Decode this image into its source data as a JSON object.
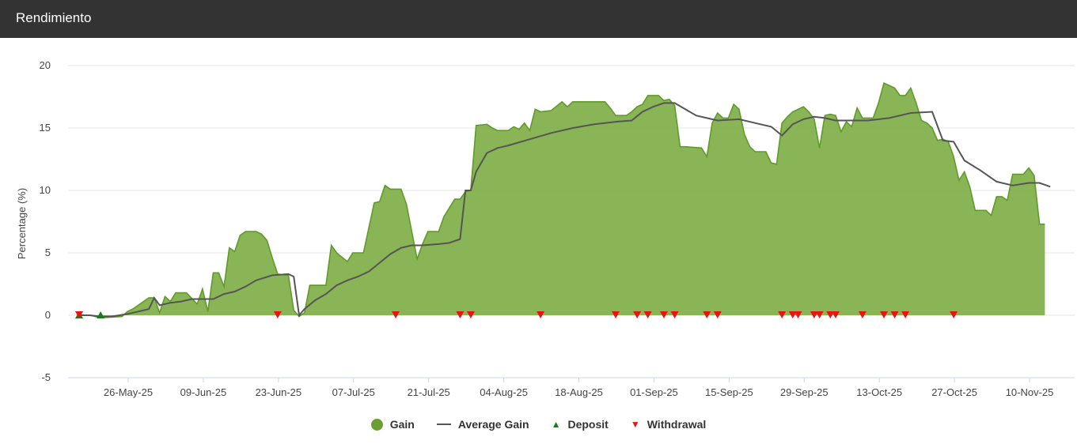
{
  "header": {
    "title": "Rendimiento"
  },
  "colors": {
    "header_bg": "#333333",
    "gain_fill": "#7aab3f",
    "gain_line": "#5f9a2a",
    "avg_line": "#555555",
    "deposit": "#1a7a1a",
    "withdrawal": "#ee1111"
  },
  "legend": [
    {
      "label": "Gain",
      "symbol": "dot",
      "color": "#6b9f2f"
    },
    {
      "label": "Average Gain",
      "symbol": "line",
      "color": "#555555"
    },
    {
      "label": "Deposit",
      "symbol": "triangle-up",
      "color": "#1a7a1a"
    },
    {
      "label": "Withdrawal",
      "symbol": "triangle-down",
      "color": "#ee1111"
    }
  ],
  "chart_data": {
    "type": "area",
    "ylabel": "Percentage (%)",
    "xlabel": "",
    "ylim": [
      -5,
      20
    ],
    "yticks": [
      -5,
      0,
      5,
      10,
      15,
      20
    ],
    "xlim": [
      "2025-05-26",
      "2025-11-20"
    ],
    "x_tick_labels": [
      "26-May-25",
      "09-Jun-25",
      "23-Jun-25",
      "07-Jul-25",
      "21-Jul-25",
      "04-Aug-25",
      "18-Aug-25",
      "01-Sep-25",
      "15-Sep-25",
      "29-Sep-25",
      "13-Oct-25",
      "27-Oct-25",
      "10-Nov-25"
    ],
    "grid": true,
    "legend_position": "bottom",
    "series": [
      {
        "name": "Gain",
        "type": "area",
        "points": [
          [
            "2025-05-26",
            0.0
          ],
          [
            "2025-05-28",
            0.0
          ],
          [
            "2025-05-30",
            -0.2
          ],
          [
            "2025-06-03",
            -0.1
          ],
          [
            "2025-06-04",
            0.3
          ],
          [
            "2025-06-05",
            0.5
          ],
          [
            "2025-06-08",
            1.4
          ],
          [
            "2025-06-09",
            1.4
          ],
          [
            "2025-06-10",
            0.2
          ],
          [
            "2025-06-11",
            1.5
          ],
          [
            "2025-06-12",
            1.1
          ],
          [
            "2025-06-13",
            1.8
          ],
          [
            "2025-06-15",
            1.8
          ],
          [
            "2025-06-17",
            0.9
          ],
          [
            "2025-06-18",
            2.1
          ],
          [
            "2025-06-19",
            0.3
          ],
          [
            "2025-06-20",
            3.4
          ],
          [
            "2025-06-21",
            3.4
          ],
          [
            "2025-06-22",
            2.3
          ],
          [
            "2025-06-23",
            5.4
          ],
          [
            "2025-06-24",
            5.1
          ],
          [
            "2025-06-25",
            6.4
          ],
          [
            "2025-06-26",
            6.7
          ],
          [
            "2025-06-28",
            6.7
          ],
          [
            "2025-06-29",
            6.5
          ],
          [
            "2025-06-30",
            6.0
          ],
          [
            "2025-07-01",
            4.6
          ],
          [
            "2025-07-02",
            3.3
          ],
          [
            "2025-07-04",
            3.2
          ],
          [
            "2025-07-05",
            0.4
          ],
          [
            "2025-07-06",
            -0.1
          ],
          [
            "2025-07-07",
            0.2
          ],
          [
            "2025-07-08",
            2.4
          ],
          [
            "2025-07-11",
            2.4
          ],
          [
            "2025-07-12",
            5.6
          ],
          [
            "2025-07-13",
            5.0
          ],
          [
            "2025-07-15",
            4.3
          ],
          [
            "2025-07-16",
            5.0
          ],
          [
            "2025-07-18",
            5.0
          ],
          [
            "2025-07-20",
            9.0
          ],
          [
            "2025-07-21",
            9.1
          ],
          [
            "2025-07-22",
            10.4
          ],
          [
            "2025-07-23",
            10.1
          ],
          [
            "2025-07-25",
            10.1
          ],
          [
            "2025-07-26",
            8.9
          ],
          [
            "2025-07-28",
            4.5
          ],
          [
            "2025-07-29",
            5.7
          ],
          [
            "2025-07-30",
            6.7
          ],
          [
            "2025-08-01",
            6.7
          ],
          [
            "2025-08-02",
            7.9
          ],
          [
            "2025-08-04",
            9.3
          ],
          [
            "2025-08-05",
            9.3
          ],
          [
            "2025-08-06",
            9.9
          ],
          [
            "2025-08-07",
            10.0
          ],
          [
            "2025-08-08",
            15.2
          ],
          [
            "2025-08-10",
            15.3
          ],
          [
            "2025-08-11",
            15.0
          ],
          [
            "2025-08-12",
            14.8
          ],
          [
            "2025-08-14",
            14.8
          ],
          [
            "2025-08-15",
            15.1
          ],
          [
            "2025-08-16",
            14.9
          ],
          [
            "2025-08-17",
            15.4
          ],
          [
            "2025-08-18",
            14.8
          ],
          [
            "2025-08-19",
            16.5
          ],
          [
            "2025-08-20",
            16.3
          ],
          [
            "2025-08-22",
            16.4
          ],
          [
            "2025-08-24",
            17.1
          ],
          [
            "2025-08-25",
            16.7
          ],
          [
            "2025-08-26",
            17.1
          ],
          [
            "2025-08-28",
            17.1
          ],
          [
            "2025-09-01",
            17.1
          ],
          [
            "2025-09-02",
            16.6
          ],
          [
            "2025-09-03",
            16.0
          ],
          [
            "2025-09-05",
            16.0
          ],
          [
            "2025-09-06",
            16.3
          ],
          [
            "2025-09-07",
            16.7
          ],
          [
            "2025-09-08",
            16.9
          ],
          [
            "2025-09-09",
            17.6
          ],
          [
            "2025-09-10",
            17.6
          ],
          [
            "2025-09-11",
            17.6
          ],
          [
            "2025-09-12",
            17.2
          ],
          [
            "2025-09-13",
            17.3
          ],
          [
            "2025-09-14",
            16.8
          ],
          [
            "2025-09-15",
            13.5
          ],
          [
            "2025-09-16",
            13.5
          ],
          [
            "2025-09-19",
            13.4
          ],
          [
            "2025-09-20",
            12.7
          ],
          [
            "2025-09-21",
            15.4
          ],
          [
            "2025-09-22",
            16.2
          ],
          [
            "2025-09-23",
            15.8
          ],
          [
            "2025-09-24",
            15.8
          ],
          [
            "2025-09-25",
            16.9
          ],
          [
            "2025-09-26",
            16.5
          ],
          [
            "2025-09-27",
            14.5
          ],
          [
            "2025-09-28",
            13.5
          ],
          [
            "2025-09-29",
            13.1
          ],
          [
            "2025-10-01",
            13.1
          ],
          [
            "2025-10-02",
            12.2
          ],
          [
            "2025-10-03",
            12.1
          ],
          [
            "2025-10-04",
            15.4
          ],
          [
            "2025-10-05",
            15.9
          ],
          [
            "2025-10-06",
            16.3
          ],
          [
            "2025-10-08",
            16.7
          ],
          [
            "2025-10-09",
            16.3
          ],
          [
            "2025-10-10",
            15.7
          ],
          [
            "2025-10-11",
            13.4
          ],
          [
            "2025-10-12",
            16.0
          ],
          [
            "2025-10-13",
            16.1
          ],
          [
            "2025-10-14",
            16.0
          ],
          [
            "2025-10-15",
            14.7
          ],
          [
            "2025-10-16",
            15.5
          ],
          [
            "2025-10-17",
            15.1
          ],
          [
            "2025-10-18",
            16.6
          ],
          [
            "2025-10-19",
            15.8
          ],
          [
            "2025-10-21",
            15.8
          ],
          [
            "2025-10-22",
            17.0
          ],
          [
            "2025-10-23",
            18.6
          ],
          [
            "2025-10-25",
            18.2
          ],
          [
            "2025-10-26",
            17.6
          ],
          [
            "2025-10-27",
            17.6
          ],
          [
            "2025-10-28",
            18.2
          ],
          [
            "2025-10-29",
            17.0
          ],
          [
            "2025-10-30",
            15.6
          ],
          [
            "2025-10-31",
            15.4
          ],
          [
            "2025-11-01",
            15.0
          ],
          [
            "2025-11-02",
            14.0
          ],
          [
            "2025-11-03",
            14.1
          ],
          [
            "2025-11-04",
            13.9
          ],
          [
            "2025-11-05",
            12.7
          ],
          [
            "2025-11-06",
            10.8
          ],
          [
            "2025-11-07",
            11.5
          ],
          [
            "2025-11-08",
            10.3
          ],
          [
            "2025-11-09",
            8.4
          ],
          [
            "2025-11-11",
            8.4
          ],
          [
            "2025-11-12",
            8.0
          ],
          [
            "2025-11-13",
            9.5
          ],
          [
            "2025-11-14",
            9.5
          ],
          [
            "2025-11-15",
            9.2
          ],
          [
            "2025-11-16",
            11.3
          ],
          [
            "2025-11-18",
            11.3
          ],
          [
            "2025-11-19",
            11.8
          ],
          [
            "2025-11-20",
            11.2
          ],
          [
            "2025-11-21",
            7.3
          ],
          [
            "2025-11-22",
            7.3
          ]
        ]
      },
      {
        "name": "Average Gain",
        "type": "line",
        "points": [
          [
            "2025-05-26",
            0.0
          ],
          [
            "2025-05-28",
            0.0
          ],
          [
            "2025-05-30",
            -0.1
          ],
          [
            "2025-06-01",
            -0.1
          ],
          [
            "2025-06-04",
            0.1
          ],
          [
            "2025-06-06",
            0.3
          ],
          [
            "2025-06-08",
            0.5
          ],
          [
            "2025-06-09",
            1.4
          ],
          [
            "2025-06-10",
            0.8
          ],
          [
            "2025-06-12",
            1.0
          ],
          [
            "2025-06-14",
            1.1
          ],
          [
            "2025-06-16",
            1.3
          ],
          [
            "2025-06-18",
            1.3
          ],
          [
            "2025-06-20",
            1.3
          ],
          [
            "2025-06-22",
            1.7
          ],
          [
            "2025-06-24",
            1.9
          ],
          [
            "2025-06-26",
            2.3
          ],
          [
            "2025-06-28",
            2.8
          ],
          [
            "2025-07-01",
            3.2
          ],
          [
            "2025-07-04",
            3.3
          ],
          [
            "2025-07-05",
            3.1
          ],
          [
            "2025-07-06",
            0.0
          ],
          [
            "2025-07-07",
            0.5
          ],
          [
            "2025-07-09",
            1.2
          ],
          [
            "2025-07-11",
            1.7
          ],
          [
            "2025-07-13",
            2.4
          ],
          [
            "2025-07-15",
            2.8
          ],
          [
            "2025-07-17",
            3.1
          ],
          [
            "2025-07-19",
            3.5
          ],
          [
            "2025-07-21",
            4.2
          ],
          [
            "2025-07-23",
            4.9
          ],
          [
            "2025-07-25",
            5.4
          ],
          [
            "2025-07-27",
            5.6
          ],
          [
            "2025-07-29",
            5.6
          ],
          [
            "2025-08-01",
            5.7
          ],
          [
            "2025-08-03",
            5.8
          ],
          [
            "2025-08-05",
            6.1
          ],
          [
            "2025-08-06",
            10.0
          ],
          [
            "2025-08-07",
            10.0
          ],
          [
            "2025-08-08",
            11.5
          ],
          [
            "2025-08-10",
            13.0
          ],
          [
            "2025-08-12",
            13.4
          ],
          [
            "2025-08-14",
            13.6
          ],
          [
            "2025-08-18",
            14.1
          ],
          [
            "2025-08-22",
            14.6
          ],
          [
            "2025-08-26",
            15.0
          ],
          [
            "2025-08-30",
            15.3
          ],
          [
            "2025-09-03",
            15.5
          ],
          [
            "2025-09-06",
            15.6
          ],
          [
            "2025-09-08",
            16.3
          ],
          [
            "2025-09-10",
            16.7
          ],
          [
            "2025-09-12",
            17.0
          ],
          [
            "2025-09-14",
            17.0
          ],
          [
            "2025-09-16",
            16.5
          ],
          [
            "2025-09-18",
            16.0
          ],
          [
            "2025-09-20",
            15.8
          ],
          [
            "2025-09-22",
            15.6
          ],
          [
            "2025-09-26",
            15.7
          ],
          [
            "2025-09-30",
            15.3
          ],
          [
            "2025-10-02",
            15.1
          ],
          [
            "2025-10-04",
            14.4
          ],
          [
            "2025-10-06",
            15.3
          ],
          [
            "2025-10-08",
            15.7
          ],
          [
            "2025-10-10",
            15.9
          ],
          [
            "2025-10-12",
            15.8
          ],
          [
            "2025-10-14",
            15.6
          ],
          [
            "2025-10-16",
            15.6
          ],
          [
            "2025-10-20",
            15.6
          ],
          [
            "2025-10-24",
            15.8
          ],
          [
            "2025-10-28",
            16.2
          ],
          [
            "2025-11-01",
            16.3
          ],
          [
            "2025-11-03",
            14.0
          ],
          [
            "2025-11-05",
            13.9
          ],
          [
            "2025-11-07",
            12.4
          ],
          [
            "2025-11-10",
            11.6
          ],
          [
            "2025-11-13",
            10.7
          ],
          [
            "2025-11-16",
            10.4
          ],
          [
            "2025-11-19",
            10.6
          ],
          [
            "2025-11-21",
            10.6
          ],
          [
            "2025-11-23",
            10.3
          ]
        ]
      }
    ],
    "deposits": [
      "2025-05-26",
      "2025-05-30"
    ],
    "withdrawals": [
      "2025-05-26",
      "2025-07-02",
      "2025-07-24",
      "2025-08-05",
      "2025-08-07",
      "2025-08-20",
      "2025-09-03",
      "2025-09-07",
      "2025-09-09",
      "2025-09-12",
      "2025-09-14",
      "2025-09-20",
      "2025-09-22",
      "2025-10-04",
      "2025-10-06",
      "2025-10-07",
      "2025-10-10",
      "2025-10-11",
      "2025-10-13",
      "2025-10-14",
      "2025-10-19",
      "2025-10-23",
      "2025-10-25",
      "2025-10-27",
      "2025-11-05"
    ]
  }
}
